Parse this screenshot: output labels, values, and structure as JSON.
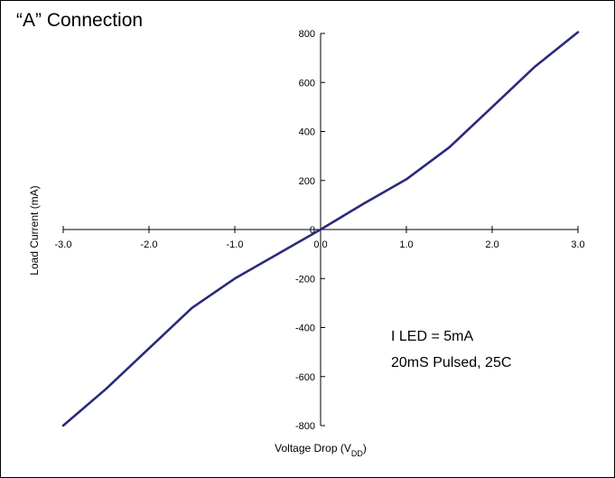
{
  "chart_data": {
    "type": "line",
    "title": "“A” Connection",
    "xlabel": "Voltage Drop (V",
    "xlabel_sub": "DD",
    "xlabel_close": ")",
    "ylabel": "Load Current (mA)",
    "xlim": [
      -3.0,
      3.0
    ],
    "ylim": [
      -800,
      800
    ],
    "x_ticks": [
      "-3.0",
      "-2.0",
      "-1.0",
      "0.0",
      "1.0",
      "2.0",
      "3.0"
    ],
    "y_ticks": [
      "800",
      "600",
      "400",
      "200",
      "0",
      "-200",
      "-400",
      "-600",
      "-800"
    ],
    "annotations": [
      "I LED = 5mA",
      "20mS  Pulsed, 25C"
    ],
    "series": [
      {
        "color": "#2a2a7a",
        "x": [
          -3.0,
          -2.5,
          -2.0,
          -1.5,
          -1.0,
          -0.5,
          0.0,
          0.5,
          1.0,
          1.5,
          2.0,
          2.5,
          3.0
        ],
        "y": [
          -800,
          -650,
          -485,
          -320,
          -200,
          -100,
          0,
          105,
          205,
          335,
          500,
          665,
          805
        ]
      }
    ]
  }
}
